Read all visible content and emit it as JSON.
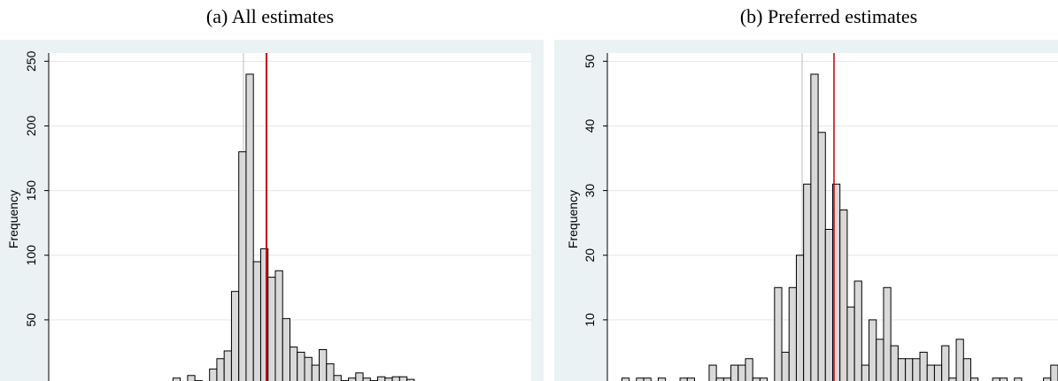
{
  "chart_data": [
    {
      "type": "bar",
      "title": "(a) All estimates",
      "y_label": "Frequency",
      "color": "#d9d9d9",
      "edge_color": "#000000",
      "grid": true,
      "ylim": [
        0,
        255
      ],
      "yticks": [
        50,
        100,
        150,
        200,
        250
      ],
      "values": [
        0,
        0,
        0,
        0,
        0,
        0,
        0,
        0,
        0,
        0,
        0,
        0,
        0,
        0,
        2,
        0,
        0,
        5,
        0,
        7,
        3,
        0,
        12,
        20,
        26,
        72,
        180,
        240,
        95,
        105,
        83,
        88,
        51,
        29,
        25,
        21,
        15,
        27,
        16,
        7,
        3,
        5,
        9,
        5,
        3,
        6,
        5,
        6,
        6,
        4,
        0,
        0,
        2,
        0,
        0,
        0,
        0,
        0,
        0,
        0,
        2,
        0,
        0,
        0,
        0,
        0
      ]
    },
    {
      "type": "bar",
      "title": "(b) Preferred estimates",
      "y_label": "Frequency",
      "color": "#d9d9d9",
      "edge_color": "#000000",
      "grid": true,
      "ylim": [
        0,
        51
      ],
      "yticks": [
        10,
        20,
        30,
        40,
        50
      ],
      "values": [
        0,
        0,
        1,
        0,
        1,
        1,
        0,
        1,
        0,
        0,
        1,
        1,
        0,
        0,
        3,
        1,
        1,
        3,
        3,
        4,
        1,
        1,
        0,
        15,
        5,
        15,
        20,
        31,
        48,
        39,
        24,
        31,
        27,
        12,
        16,
        3,
        10,
        7,
        15,
        6,
        4,
        4,
        4,
        5,
        3,
        3,
        6,
        1,
        7,
        4,
        1,
        0,
        0,
        1,
        1,
        0,
        1,
        0,
        0,
        0,
        1,
        3
      ]
    }
  ]
}
